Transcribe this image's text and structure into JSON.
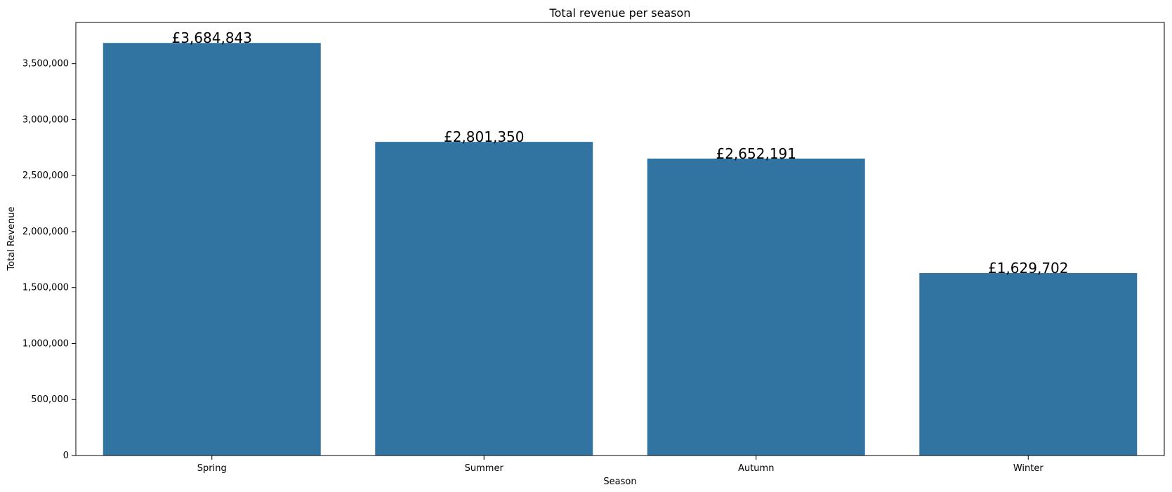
{
  "chart_data": {
    "type": "bar",
    "title": "Total revenue per season",
    "xlabel": "Season",
    "ylabel": "Total Revenue",
    "categories": [
      "Spring",
      "Summer",
      "Autumn",
      "Winter"
    ],
    "values": [
      3684843,
      2801350,
      2652191,
      1629702
    ],
    "data_labels": [
      "£3,684,843",
      "£2,801,350",
      "£2,652,191",
      "£1,629,702"
    ],
    "ylim": [
      0,
      3868000
    ],
    "yticks": [
      0,
      500000,
      1000000,
      1500000,
      2000000,
      2500000,
      3000000,
      3500000
    ],
    "ytick_labels": [
      "0",
      "500,000",
      "1,000,000",
      "1,500,000",
      "2,000,000",
      "2,500,000",
      "3,000,000",
      "3,500,000"
    ],
    "grid": false,
    "bar_color": "#3274a1"
  }
}
